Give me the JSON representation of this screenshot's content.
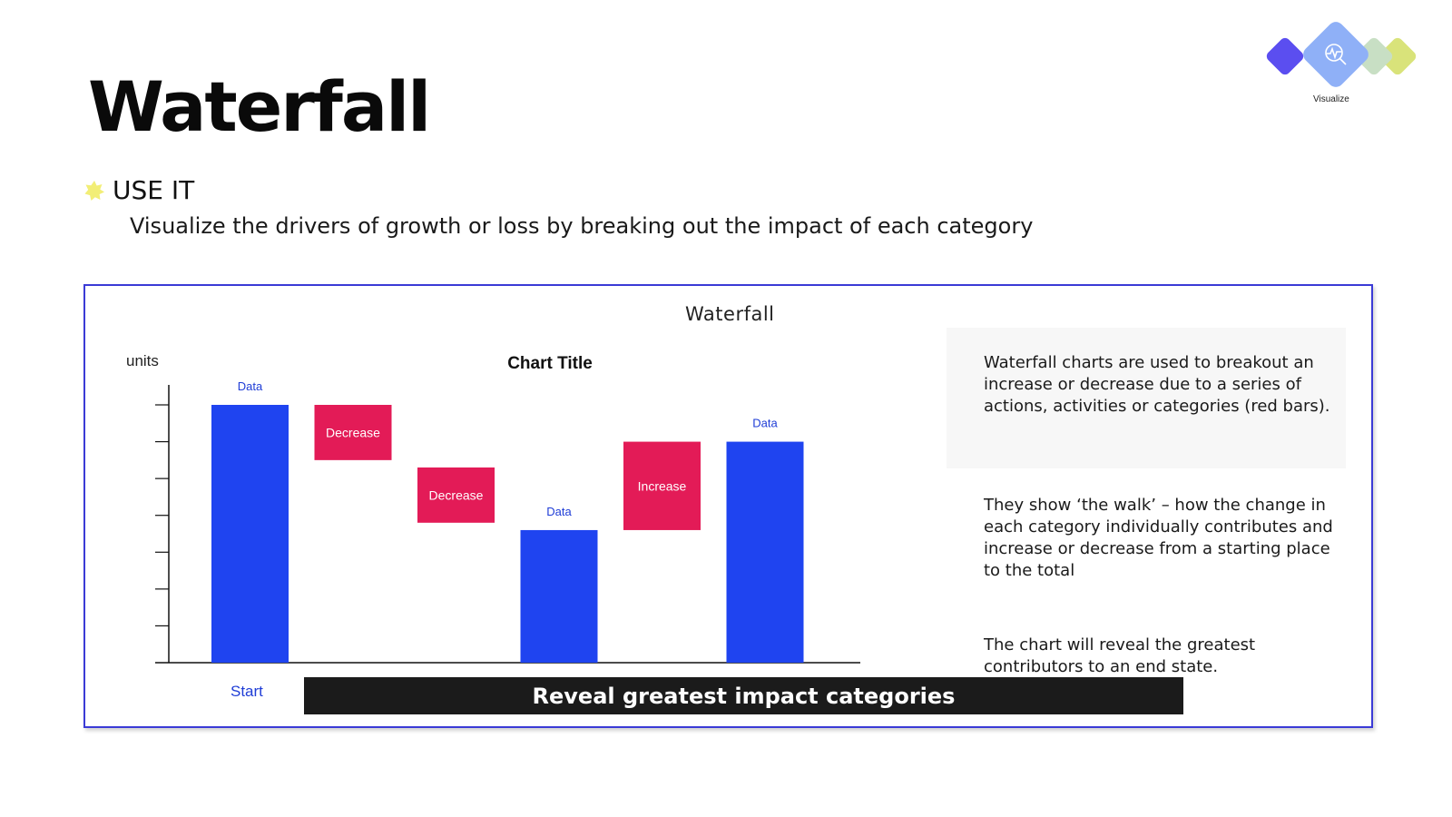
{
  "slide": {
    "title": "Waterfall",
    "use_it_label": "USE IT",
    "use_it_description": "Visualize the drivers of growth or loss by breaking out the impact of each category"
  },
  "badge": {
    "label": "Visualize",
    "icon": "magnifier-pulse-icon",
    "colors": [
      "#5b4ef0",
      "#8fb0f7",
      "#c8dfc4",
      "#d9e37a"
    ]
  },
  "frame": {
    "title": "Waterfall"
  },
  "chart_data": {
    "type": "bar",
    "subtype": "waterfall",
    "title": "Chart Title",
    "ylabel": "units",
    "xlabel": "",
    "category_labels": [
      "Start",
      "",
      "",
      "",
      "",
      ""
    ],
    "ylim": [
      0,
      7
    ],
    "grid": false,
    "y_ticks": 7,
    "bars": [
      {
        "kind": "total",
        "label": "Data",
        "base": 0,
        "top": 7.0
      },
      {
        "kind": "change",
        "label": "Decrease",
        "base": 5.5,
        "top": 7.0
      },
      {
        "kind": "change",
        "label": "Decrease",
        "base": 3.8,
        "top": 5.3
      },
      {
        "kind": "total",
        "label": "Data",
        "base": 0,
        "top": 3.6
      },
      {
        "kind": "change",
        "label": "Increase",
        "base": 3.6,
        "top": 6.0
      },
      {
        "kind": "total",
        "label": "Data",
        "base": 0,
        "top": 6.0
      }
    ],
    "colors": {
      "total": "#1f44f0",
      "change": "#e31b57",
      "total_label": "#1f3dd6",
      "change_label": "#ffffff"
    }
  },
  "notes": [
    "Waterfall charts are used to breakout an increase or decrease due to a series of actions, activities or categories (red bars).",
    "They show ‘the walk’ – how the change in each category individually contributes and increase or decrease from a starting place to the total",
    "The chart will reveal the greatest contributors to an end state."
  ],
  "caption": "Reveal greatest impact categories"
}
